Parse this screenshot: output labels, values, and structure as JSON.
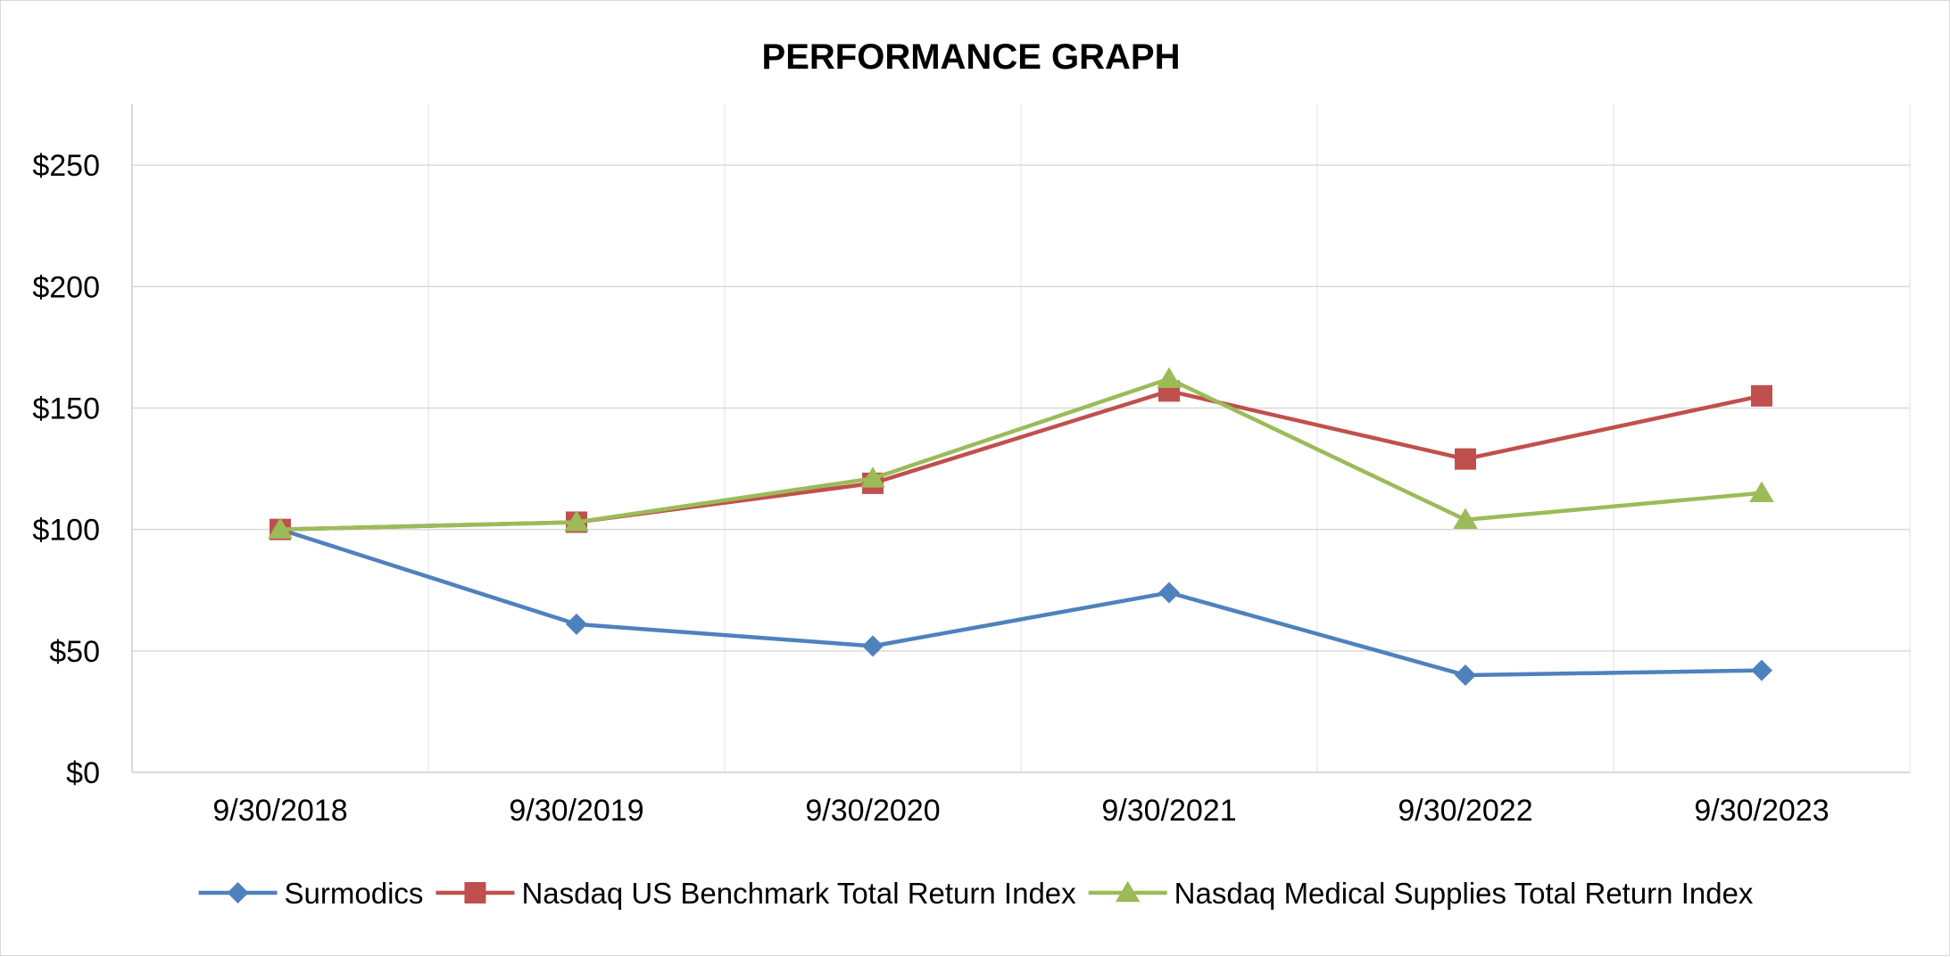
{
  "chart_data": {
    "type": "line",
    "title": "PERFORMANCE GRAPH",
    "xlabel": "",
    "ylabel": "",
    "categories": [
      "9/30/2018",
      "9/30/2019",
      "9/30/2020",
      "9/30/2021",
      "9/30/2022",
      "9/30/2023"
    ],
    "y_ticks": [
      "$0",
      "$50",
      "$100",
      "$150",
      "$200",
      "$250"
    ],
    "y_tick_values": [
      0,
      50,
      100,
      150,
      200,
      250
    ],
    "ylim": [
      0,
      275
    ],
    "grid": true,
    "legend_position": "bottom",
    "series": [
      {
        "name": "Surmodics",
        "color": "#4f81bd",
        "marker": "diamond",
        "values": [
          100,
          61,
          52,
          74,
          40,
          42
        ]
      },
      {
        "name": "Nasdaq US Benchmark Total Return Index",
        "color": "#c0504d",
        "marker": "square",
        "values": [
          100,
          103,
          119,
          157,
          129,
          155
        ]
      },
      {
        "name": "Nasdaq Medical Supplies Total Return Index",
        "color": "#9bbb59",
        "marker": "triangle",
        "values": [
          100,
          103,
          121,
          162,
          104,
          115
        ]
      }
    ]
  }
}
